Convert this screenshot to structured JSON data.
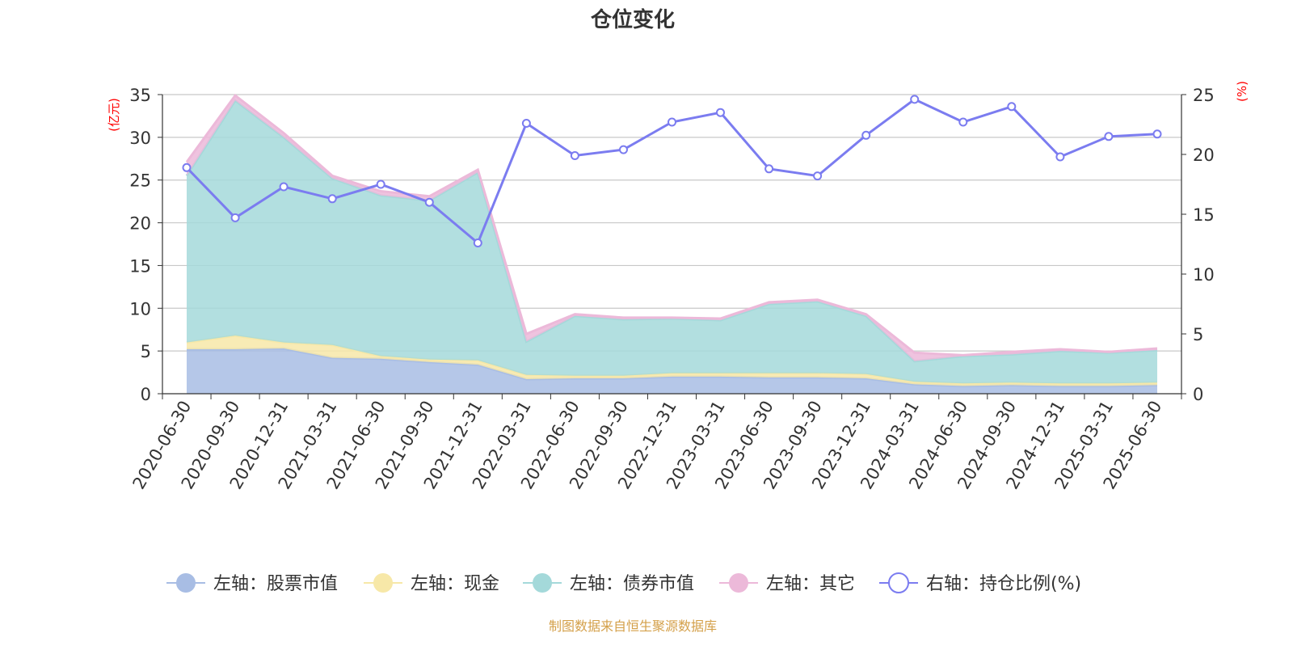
{
  "chart_data": {
    "type": "area",
    "title": "仓位变化",
    "left_axis_unit": "(亿元)",
    "right_axis_unit": "(%)",
    "source_note": "制图数据来自恒生聚源数据库",
    "left_ylim": [
      0,
      35
    ],
    "left_yticks": [
      0,
      5,
      10,
      15,
      20,
      25,
      30,
      35
    ],
    "right_ylim": [
      0,
      25
    ],
    "right_yticks": [
      0,
      5,
      10,
      15,
      20,
      25
    ],
    "grid": true,
    "legend_position": "bottom",
    "categories": [
      "2020-06-30",
      "2020-09-30",
      "2020-12-31",
      "2021-03-31",
      "2021-06-30",
      "2021-09-30",
      "2021-12-31",
      "2022-03-31",
      "2022-06-30",
      "2022-09-30",
      "2022-12-31",
      "2023-03-31",
      "2023-06-30",
      "2023-09-30",
      "2023-12-31",
      "2024-03-31",
      "2024-06-30",
      "2024-09-30",
      "2024-12-31",
      "2025-03-31",
      "2025-06-30"
    ],
    "series": [
      {
        "name": "左轴：股票市值",
        "axis": "left",
        "kind": "stacked-area",
        "color": "#a8bde4",
        "values": [
          5.2,
          5.2,
          5.3,
          4.2,
          4.1,
          3.7,
          3.4,
          1.7,
          1.8,
          1.8,
          2.0,
          2.0,
          1.9,
          1.9,
          1.8,
          1.1,
          0.9,
          1.0,
          0.9,
          0.9,
          1.0
        ]
      },
      {
        "name": "左轴：现金",
        "axis": "left",
        "kind": "stacked-area",
        "color": "#f7e8a8",
        "values": [
          0.8,
          1.6,
          0.7,
          1.5,
          0.3,
          0.3,
          0.5,
          0.5,
          0.3,
          0.3,
          0.4,
          0.4,
          0.5,
          0.5,
          0.5,
          0.3,
          0.3,
          0.3,
          0.3,
          0.3,
          0.3
        ]
      },
      {
        "name": "左轴：债券市值",
        "axis": "left",
        "kind": "stacked-area",
        "color": "#a4d9da",
        "values": [
          19.5,
          27.5,
          24.0,
          19.5,
          18.8,
          18.6,
          22.0,
          3.9,
          7.0,
          6.6,
          6.4,
          6.2,
          8.1,
          8.4,
          6.8,
          2.4,
          3.2,
          3.3,
          3.8,
          3.6,
          3.8
        ]
      },
      {
        "name": "左轴：其它",
        "axis": "left",
        "kind": "stacked-area",
        "color": "#ecb9d9",
        "values": [
          1.6,
          0.6,
          0.5,
          0.3,
          0.5,
          0.5,
          0.3,
          0.9,
          0.2,
          0.2,
          0.1,
          0.2,
          0.2,
          0.2,
          0.2,
          1.0,
          0.1,
          0.3,
          0.2,
          0.1,
          0.2
        ]
      },
      {
        "name": "右轴：持仓比例(%)",
        "axis": "right",
        "kind": "line",
        "color": "#7b7cf0",
        "values": [
          18.9,
          14.7,
          17.3,
          16.3,
          17.5,
          16.0,
          12.6,
          22.6,
          19.9,
          20.4,
          22.7,
          23.5,
          18.8,
          18.2,
          21.6,
          24.6,
          22.7,
          24.0,
          19.8,
          21.5,
          21.7
        ]
      }
    ]
  }
}
